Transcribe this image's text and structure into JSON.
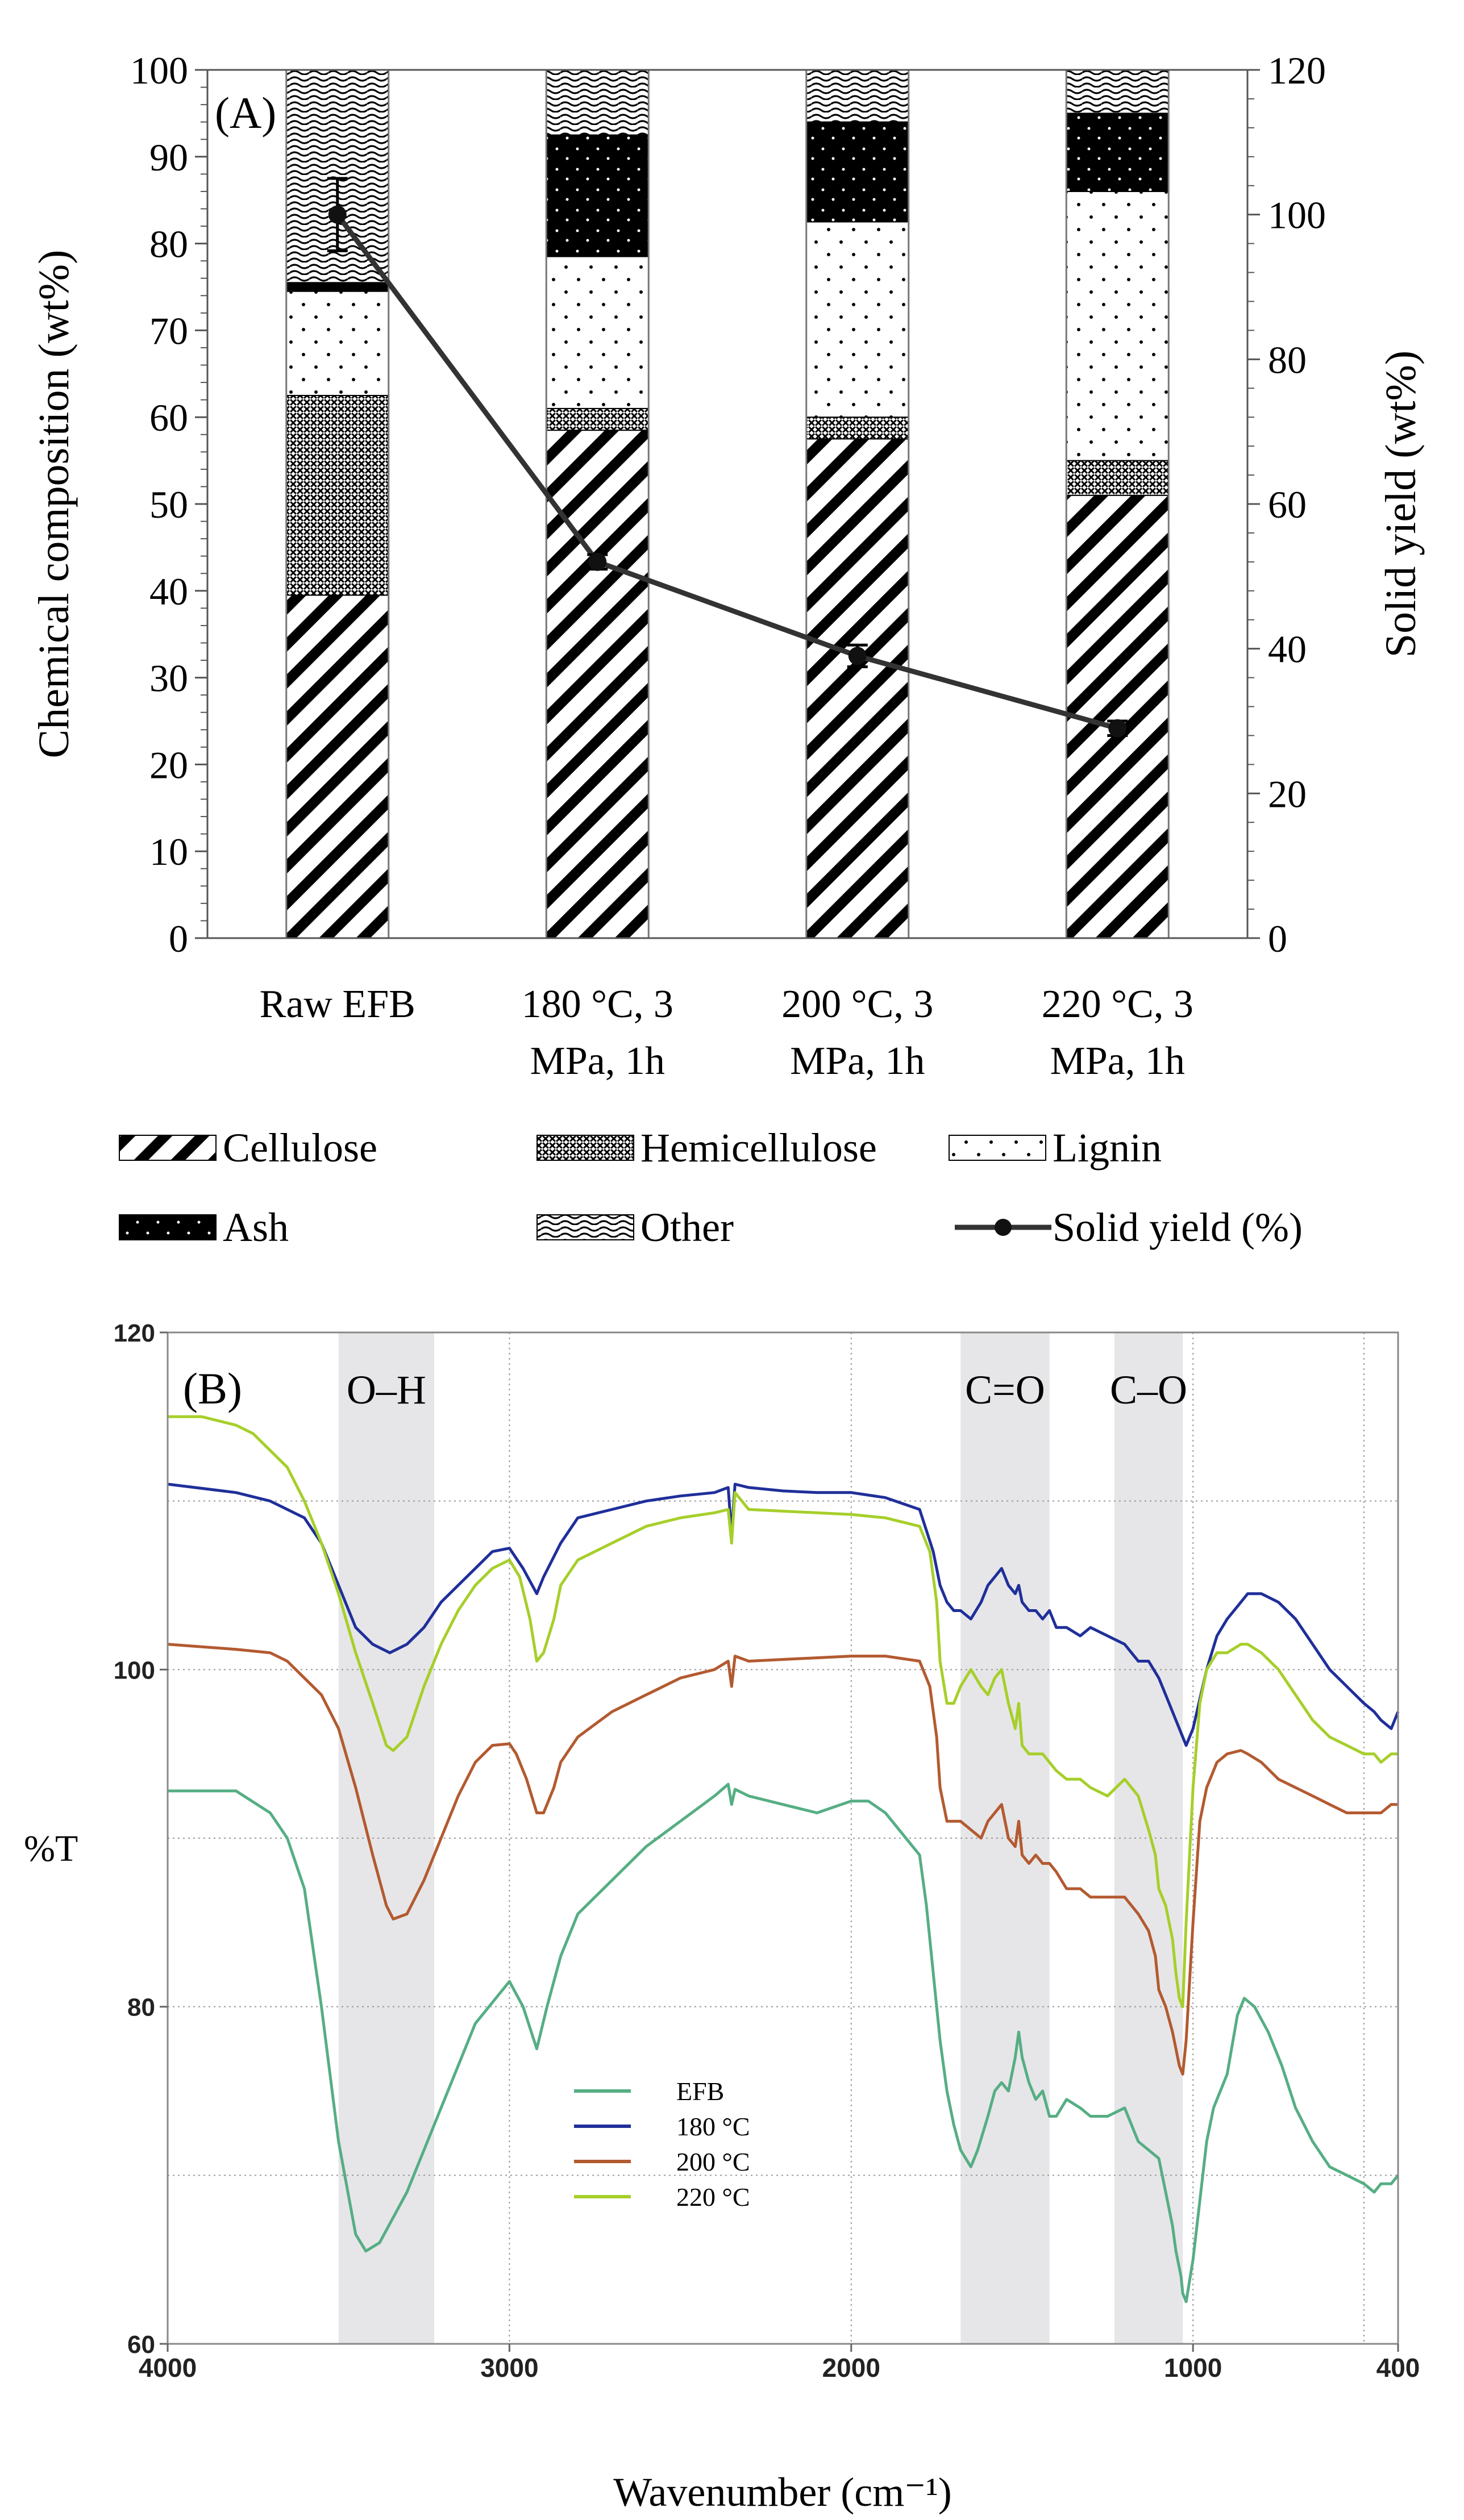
{
  "chart_data": [
    {
      "type": "bar",
      "subtype": "stacked-bar-with-line",
      "panel_label": "(A)",
      "categories": [
        [
          "Raw EFB",
          ""
        ],
        [
          "180 °C, 3",
          "MPa, 1h"
        ],
        [
          "200 °C, 3",
          "MPa, 1h"
        ],
        [
          "220 °C, 3",
          "MPa, 1h"
        ]
      ],
      "series": [
        {
          "name": "Cellulose",
          "pattern": "diagonal-hatch",
          "values": [
            39.5,
            58.5,
            57.5,
            51.0
          ]
        },
        {
          "name": "Hemicellulose",
          "pattern": "crosshatch",
          "values": [
            23.0,
            2.5,
            2.5,
            4.0
          ]
        },
        {
          "name": "Lignin",
          "pattern": "sparse-dots",
          "values": [
            12.0,
            17.5,
            22.5,
            31.0
          ]
        },
        {
          "name": "Ash",
          "pattern": "solid-black-dots",
          "values": [
            1.0,
            14.0,
            11.5,
            9.0
          ]
        },
        {
          "name": "Other",
          "pattern": "wavy",
          "values": [
            24.5,
            7.5,
            6.0,
            5.0
          ]
        }
      ],
      "line_series": {
        "name": "Solid yield (%)",
        "axis": "right",
        "values": [
          100,
          52,
          39,
          29
        ],
        "errors": [
          5.0,
          1.0,
          1.5,
          1.0
        ]
      },
      "ylabel": "Chemical composition (wt%)",
      "ylabel_right": "Solid yield (wt%)",
      "ylim": [
        0,
        100
      ],
      "ylim_right": [
        0,
        120
      ],
      "yticks": [
        0,
        10,
        20,
        30,
        40,
        50,
        60,
        70,
        80,
        90,
        100
      ],
      "yticks_right": [
        0,
        20,
        40,
        60,
        80,
        100,
        120
      ],
      "legend": [
        {
          "label": "Cellulose",
          "pattern": "diagonal-hatch"
        },
        {
          "label": "Hemicellulose",
          "pattern": "crosshatch"
        },
        {
          "label": "Lignin",
          "pattern": "sparse-dots"
        },
        {
          "label": "Ash",
          "pattern": "solid-black-dots"
        },
        {
          "label": "Other",
          "pattern": "wavy"
        },
        {
          "label": "Solid yield (%)",
          "pattern": "line-marker"
        }
      ],
      "legend_position": "bottom"
    },
    {
      "type": "line",
      "panel_label": "(B)",
      "xlabel": "Wavenumber (cm⁻¹)",
      "ylabel": "%T",
      "xlim": [
        4000,
        400
      ],
      "ylim": [
        60,
        120
      ],
      "xticks": [
        4000,
        3000,
        2000,
        1000,
        400
      ],
      "yticks": [
        60,
        80,
        100,
        120
      ],
      "grid": true,
      "bands": [
        {
          "label": "O–H",
          "from": 3500,
          "to": 3220
        },
        {
          "label": "C=O",
          "from": 1680,
          "to": 1420
        },
        {
          "label": "C–O",
          "from": 1230,
          "to": 1030
        }
      ],
      "legend_position": "bottom-center",
      "series": [
        {
          "name": "EFB",
          "color": "#56ae84",
          "x": [
            4000,
            3800,
            3700,
            3650,
            3600,
            3550,
            3500,
            3450,
            3420,
            3380,
            3300,
            3200,
            3100,
            3000,
            2960,
            2920,
            2890,
            2850,
            2800,
            2700,
            2600,
            2500,
            2400,
            2360,
            2350,
            2340,
            2300,
            2200,
            2100,
            2000,
            1950,
            1900,
            1800,
            1780,
            1760,
            1740,
            1720,
            1700,
            1680,
            1650,
            1630,
            1600,
            1580,
            1560,
            1540,
            1520,
            1510,
            1500,
            1480,
            1460,
            1440,
            1420,
            1400,
            1370,
            1330,
            1300,
            1250,
            1200,
            1160,
            1130,
            1100,
            1080,
            1060,
            1050,
            1035,
            1030,
            1020,
            1000,
            960,
            940,
            900,
            870,
            850,
            820,
            780,
            740,
            700,
            650,
            600,
            550,
            500,
            470,
            450,
            420,
            400
          ],
          "y": [
            92.8,
            92.8,
            91.5,
            90,
            87,
            80,
            72,
            66.5,
            65.5,
            66,
            69,
            74,
            79,
            81.5,
            80,
            77.5,
            80,
            83,
            85.5,
            87.5,
            89.5,
            91,
            92.5,
            93.2,
            92,
            92.9,
            92.5,
            92.0,
            91.5,
            92.2,
            92.2,
            91.5,
            89,
            86,
            82,
            78,
            75,
            73,
            71.5,
            70.5,
            71.5,
            73.5,
            75,
            75.5,
            75,
            77,
            78.5,
            77,
            75.5,
            74.5,
            75,
            73.5,
            73.5,
            74.5,
            74,
            73.5,
            73.5,
            74,
            72,
            71.5,
            71,
            69,
            67,
            65.5,
            64,
            63,
            62.5,
            65,
            72,
            74,
            76,
            79.5,
            80.5,
            80,
            78.5,
            76.5,
            74,
            72,
            70.5,
            70,
            69.5,
            69,
            69.5,
            69.5,
            70
          ]
        },
        {
          "name": "180 °C",
          "color": "#1f2f9a",
          "x": [
            4000,
            3800,
            3700,
            3650,
            3600,
            3550,
            3500,
            3450,
            3400,
            3350,
            3300,
            3250,
            3200,
            3100,
            3050,
            3000,
            2960,
            2920,
            2900,
            2850,
            2800,
            2700,
            2600,
            2500,
            2400,
            2360,
            2350,
            2340,
            2300,
            2200,
            2100,
            2000,
            1900,
            1800,
            1760,
            1740,
            1720,
            1700,
            1680,
            1650,
            1620,
            1600,
            1580,
            1560,
            1540,
            1520,
            1510,
            1500,
            1480,
            1460,
            1440,
            1420,
            1400,
            1370,
            1330,
            1300,
            1250,
            1200,
            1160,
            1130,
            1100,
            1080,
            1060,
            1040,
            1030,
            1020,
            1000,
            960,
            930,
            900,
            860,
            840,
            800,
            750,
            700,
            650,
            600,
            550,
            500,
            470,
            450,
            420,
            400
          ],
          "y": [
            111,
            110.5,
            110,
            109.5,
            109,
            107.5,
            105,
            102.5,
            101.5,
            101,
            101.5,
            102.5,
            104,
            106,
            107,
            107.2,
            106,
            104.5,
            105.5,
            107.5,
            109,
            109.5,
            110,
            110.3,
            110.5,
            110.8,
            108,
            111,
            110.8,
            110.6,
            110.5,
            110.5,
            110.2,
            109.5,
            107,
            105,
            104,
            103.5,
            103.5,
            103,
            104,
            105,
            105.5,
            106,
            105,
            104.5,
            105,
            104,
            103.5,
            103.5,
            103,
            103.5,
            102.5,
            102.5,
            102,
            102.5,
            102,
            101.5,
            100.5,
            100.5,
            99.5,
            98.5,
            97.5,
            96.5,
            96,
            95.5,
            96.5,
            100,
            102,
            103,
            104,
            104.5,
            104.5,
            104,
            103,
            101.5,
            100,
            99,
            98,
            97.5,
            97,
            96.5,
            97.5
          ]
        },
        {
          "name": "200 °C",
          "color": "#b35a30",
          "x": [
            4000,
            3800,
            3700,
            3650,
            3600,
            3550,
            3500,
            3450,
            3400,
            3360,
            3340,
            3300,
            3250,
            3200,
            3150,
            3100,
            3050,
            3000,
            2980,
            2950,
            2920,
            2900,
            2870,
            2850,
            2800,
            2700,
            2600,
            2500,
            2400,
            2360,
            2350,
            2340,
            2300,
            2200,
            2100,
            2000,
            1900,
            1800,
            1770,
            1750,
            1740,
            1720,
            1700,
            1680,
            1650,
            1620,
            1600,
            1580,
            1560,
            1540,
            1520,
            1510,
            1500,
            1480,
            1460,
            1440,
            1420,
            1400,
            1370,
            1330,
            1300,
            1250,
            1200,
            1160,
            1130,
            1110,
            1100,
            1080,
            1060,
            1050,
            1040,
            1030,
            1020,
            1000,
            980,
            960,
            930,
            900,
            860,
            840,
            800,
            750,
            700,
            650,
            600,
            550,
            500,
            470,
            450,
            420,
            400
          ],
          "y": [
            101.5,
            101.2,
            101,
            100.5,
            99.5,
            98.5,
            96.5,
            93,
            89,
            86,
            85.2,
            85.5,
            87.5,
            90,
            92.5,
            94.5,
            95.5,
            95.6,
            95,
            93.5,
            91.5,
            91.5,
            93,
            94.5,
            96,
            97.5,
            98.5,
            99.5,
            100,
            100.5,
            99,
            100.8,
            100.5,
            100.6,
            100.7,
            100.8,
            100.8,
            100.5,
            99,
            96,
            93,
            91,
            91,
            91,
            90.5,
            90,
            91,
            91.5,
            92,
            90,
            89.5,
            91,
            89,
            88.5,
            89,
            88.5,
            88.5,
            88,
            87,
            87,
            86.5,
            86.5,
            86.5,
            85.5,
            84.5,
            83,
            81,
            80,
            78.5,
            77.5,
            76.5,
            76,
            78,
            85,
            91,
            93,
            94.5,
            95,
            95.2,
            95,
            94.5,
            93.5,
            93,
            92.5,
            92,
            91.5,
            91.5,
            91.5,
            91.5,
            92,
            92
          ]
        },
        {
          "name": "220 °C",
          "color": "#a6cf2a",
          "x": [
            4000,
            3900,
            3800,
            3750,
            3700,
            3650,
            3600,
            3550,
            3500,
            3450,
            3400,
            3360,
            3340,
            3300,
            3250,
            3200,
            3150,
            3100,
            3050,
            3000,
            2970,
            2940,
            2920,
            2900,
            2870,
            2850,
            2800,
            2700,
            2600,
            2500,
            2400,
            2360,
            2350,
            2340,
            2300,
            2200,
            2100,
            2000,
            1900,
            1800,
            1770,
            1750,
            1740,
            1720,
            1700,
            1680,
            1650,
            1620,
            1600,
            1580,
            1560,
            1540,
            1520,
            1510,
            1500,
            1480,
            1460,
            1440,
            1420,
            1400,
            1370,
            1330,
            1300,
            1250,
            1200,
            1160,
            1130,
            1110,
            1100,
            1080,
            1060,
            1050,
            1040,
            1030,
            1020,
            1000,
            980,
            960,
            930,
            900,
            860,
            840,
            800,
            750,
            700,
            650,
            600,
            550,
            500,
            470,
            450,
            420,
            400
          ],
          "y": [
            115,
            115,
            114.5,
            114,
            113,
            112,
            110,
            107.5,
            104.5,
            101,
            98,
            95.5,
            95.2,
            96,
            99,
            101.5,
            103.5,
            105,
            106,
            106.5,
            105.5,
            103,
            100.5,
            101,
            103,
            105,
            106.5,
            107.5,
            108.5,
            109,
            109.3,
            109.5,
            107.5,
            110.5,
            109.5,
            109.4,
            109.3,
            109.2,
            109,
            108.5,
            107,
            104,
            100.5,
            98,
            98,
            99,
            100,
            99,
            98.5,
            99.5,
            100,
            98,
            96.5,
            98,
            95.5,
            95,
            95,
            95,
            94.5,
            94,
            93.5,
            93.5,
            93,
            92.5,
            93.5,
            92.5,
            90.5,
            89,
            87,
            86,
            84,
            82,
            80.5,
            80,
            85,
            93,
            98,
            100,
            101,
            101,
            101.5,
            101.5,
            101,
            100,
            98.5,
            97,
            96,
            95.5,
            95,
            95,
            94.5,
            95,
            95
          ]
        }
      ]
    }
  ]
}
